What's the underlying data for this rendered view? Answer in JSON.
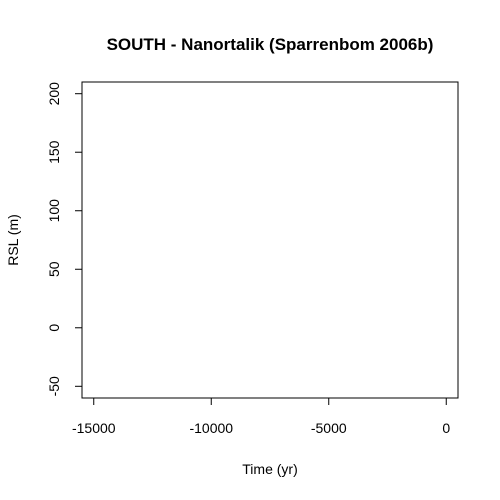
{
  "chart_data": {
    "type": "scatter",
    "title": "SOUTH - Nanortalik (Sparrenbom 2006b)",
    "xlabel": "Time (yr)",
    "ylabel": "RSL (m)",
    "xlim": [
      -15500,
      500
    ],
    "ylim": [
      -60,
      210
    ],
    "x_ticks": [
      -15000,
      -10000,
      -5000,
      0
    ],
    "y_ticks": [
      -50,
      0,
      50,
      100,
      150,
      200
    ],
    "x_tick_labels": [
      "-15000",
      "-10000",
      "-5000",
      "0"
    ],
    "y_tick_labels": [
      "-50",
      "0",
      "50",
      "100",
      "150",
      "200"
    ],
    "grid": false,
    "series": [],
    "colors": {
      "axis": "#000000",
      "background": "#ffffff"
    }
  }
}
